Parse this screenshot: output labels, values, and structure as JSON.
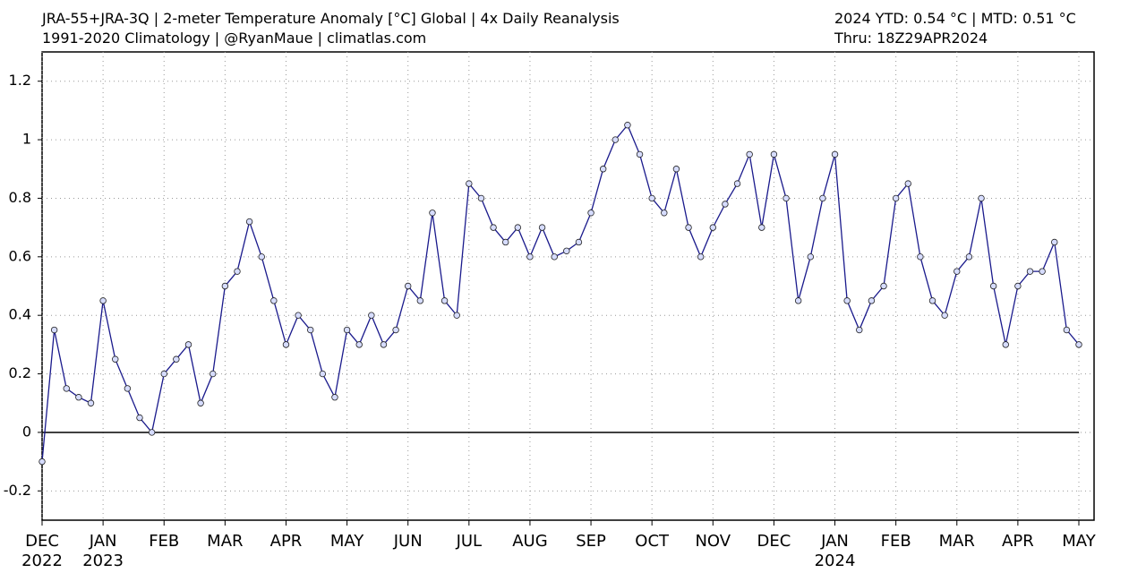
{
  "chart_data": {
    "type": "line",
    "title": "JRA-55+JRA-3Q | 2-meter Temperature Anomaly [°C] Global | 4x Daily Reanalysis",
    "subtitle": "1991-2020 Climatology | @RyanMaue | climatlas.com",
    "stat_line": "2024 YTD: 0.54 °C | MTD: 0.51 °C",
    "through": "Thru: 18Z29APR2024",
    "categories": [
      "DEC",
      null,
      null,
      null,
      null,
      "JAN",
      null,
      null,
      null,
      null,
      "FEB",
      null,
      null,
      null,
      null,
      "MAR",
      null,
      null,
      null,
      null,
      "APR",
      null,
      null,
      null,
      null,
      "MAY",
      null,
      null,
      null,
      null,
      "JUN",
      null,
      null,
      null,
      null,
      "JUL",
      null,
      null,
      null,
      null,
      "AUG",
      null,
      null,
      null,
      null,
      "SEP",
      null,
      null,
      null,
      null,
      "OCT",
      null,
      null,
      null,
      null,
      "NOV",
      null,
      null,
      null,
      null,
      "DEC",
      null,
      null,
      null,
      null,
      "JAN",
      null,
      null,
      null,
      null,
      "FEB",
      null,
      null,
      null,
      null,
      "MAR",
      null,
      null,
      null,
      null,
      "APR",
      null,
      null,
      null,
      null,
      "MAY"
    ],
    "years": [
      "2022",
      null,
      null,
      null,
      null,
      "2023",
      null,
      null,
      null,
      null,
      null,
      null,
      null,
      null,
      null,
      null,
      null,
      null,
      null,
      null,
      null,
      null,
      null,
      null,
      null,
      null,
      null,
      null,
      null,
      null,
      null,
      null,
      null,
      null,
      null,
      null,
      null,
      null,
      null,
      null,
      null,
      null,
      null,
      null,
      null,
      null,
      null,
      null,
      null,
      null,
      null,
      null,
      null,
      null,
      null,
      null,
      null,
      null,
      null,
      null,
      null,
      null,
      null,
      null,
      null,
      "2024",
      null,
      null,
      null,
      null,
      null,
      null,
      null,
      null,
      null,
      null,
      null,
      null,
      null,
      null,
      null,
      null,
      null,
      null,
      null,
      null
    ],
    "series": [
      {
        "name": "2-meter Temperature Anomaly",
        "color": "#1a1a8c",
        "marker_fill": "#d6dcff",
        "values": [
          -0.1,
          0.35,
          0.15,
          0.12,
          0.1,
          0.45,
          0.25,
          0.15,
          0.05,
          0.0,
          0.2,
          0.25,
          0.3,
          0.1,
          0.2,
          0.5,
          0.55,
          0.72,
          0.6,
          0.45,
          0.3,
          0.4,
          0.35,
          0.2,
          0.12,
          0.35,
          0.3,
          0.4,
          0.3,
          0.35,
          0.5,
          0.45,
          0.75,
          0.45,
          0.4,
          0.85,
          0.8,
          0.7,
          0.65,
          0.7,
          0.6,
          0.7,
          0.6,
          0.62,
          0.65,
          0.75,
          0.9,
          1.0,
          1.05,
          0.95,
          0.8,
          0.75,
          0.9,
          0.7,
          0.6,
          0.7,
          0.78,
          0.85,
          0.95,
          0.7,
          0.95,
          0.8,
          0.45,
          0.6,
          0.8,
          0.95,
          0.45,
          0.35,
          0.45,
          0.5,
          0.8,
          0.85,
          0.6,
          0.45,
          0.4,
          0.55,
          0.6,
          0.8,
          0.5,
          0.3,
          0.5,
          0.55,
          0.55,
          0.65,
          0.35,
          0.3
        ]
      }
    ],
    "ylim": [
      -0.3,
      1.3
    ],
    "yticks": [
      -0.2,
      0,
      0.2,
      0.4,
      0.6,
      0.8,
      1,
      1.2
    ],
    "grid": true,
    "zero_line": true
  }
}
